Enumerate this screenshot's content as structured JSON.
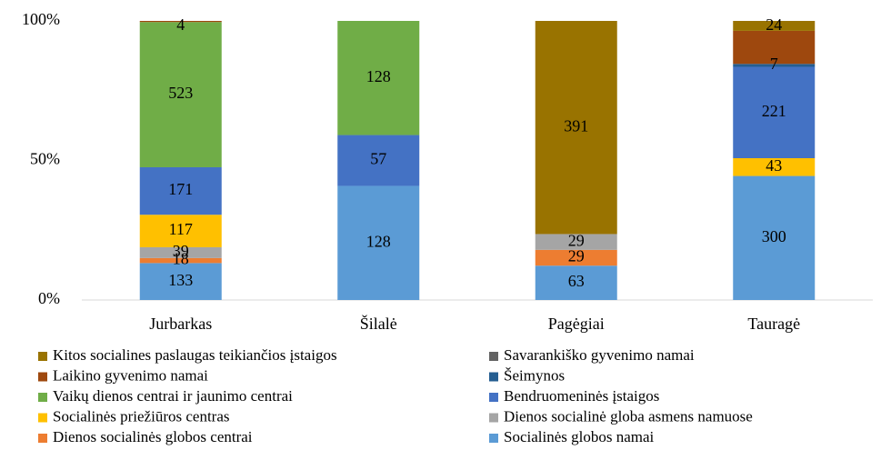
{
  "chart_data": {
    "type": "stacked_bar_100",
    "categories": [
      "Jurbarkas",
      "Šilalė",
      "Pagėgiai",
      "Tauragė"
    ],
    "series": [
      {
        "name": "Socialinės globos namai",
        "color": "#5b9bd5",
        "values": [
          133,
          128,
          63,
          300
        ],
        "value_labels": [
          "133",
          "128",
          "63",
          "300"
        ]
      },
      {
        "name": "Dienos socialinės globos centrai",
        "color": "#ed7d31",
        "values": [
          18,
          0,
          29,
          0
        ],
        "value_labels": [
          "18",
          null,
          "29",
          null
        ]
      },
      {
        "name": "Dienos socialinė globa asmens namuose",
        "color": "#a5a5a5",
        "values": [
          39,
          0,
          29,
          0
        ],
        "value_labels": [
          "39",
          null,
          "29",
          null
        ]
      },
      {
        "name": "Socialinės priežiūros centras",
        "color": "#ffc000",
        "values": [
          117,
          0,
          0,
          43
        ],
        "value_labels": [
          "117",
          null,
          null,
          "43"
        ]
      },
      {
        "name": "Bendruomeninės įstaigos",
        "color": "#4472c4",
        "values": [
          171,
          57,
          0,
          221
        ],
        "value_labels": [
          "171",
          "57",
          null,
          "221"
        ]
      },
      {
        "name": "Vaikų dienos centrai ir jaunimo centrai",
        "color": "#70ad47",
        "values": [
          523,
          128,
          0,
          0
        ],
        "value_labels": [
          "523",
          "128",
          null,
          null
        ]
      },
      {
        "name": "Šeimynos",
        "color": "#255e91",
        "values": [
          0,
          0,
          0,
          7
        ],
        "value_labels": [
          null,
          null,
          null,
          "7"
        ]
      },
      {
        "name": "Laikino gyvenimo namai",
        "color": "#9e480e",
        "values": [
          4,
          0,
          0,
          80
        ],
        "value_labels": [
          "4",
          null,
          null,
          null
        ]
      },
      {
        "name": "Savarankiško gyvenimo namai",
        "color": "#636363",
        "values": [
          0,
          0,
          0,
          0
        ],
        "value_labels": [
          null,
          null,
          null,
          null
        ]
      },
      {
        "name": "Kitos socialines paslaugas teikiančios įstaigos",
        "color": "#997300",
        "values": [
          0,
          0,
          391,
          24
        ],
        "value_labels": [
          null,
          null,
          "391",
          "24"
        ]
      }
    ],
    "ylim": [
      0,
      100
    ],
    "yticks": [
      {
        "value": 0,
        "label": "0%"
      },
      {
        "value": 50,
        "label": "50%"
      },
      {
        "value": 100,
        "label": "100%"
      }
    ]
  }
}
